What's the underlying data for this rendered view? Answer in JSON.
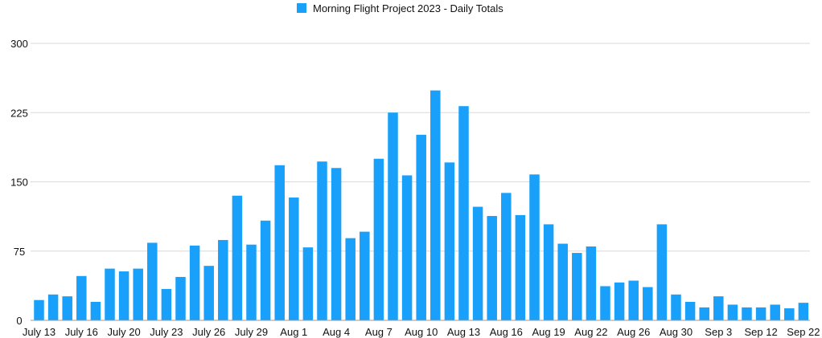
{
  "chart_data": {
    "type": "bar",
    "title": "",
    "xlabel": "",
    "ylabel": "",
    "ylim": [
      0,
      300
    ],
    "yticks": [
      0,
      75,
      150,
      225,
      300
    ],
    "grid": true,
    "legend_position": "top-center",
    "bar_color": "#18a0fb",
    "series": [
      {
        "name": "Morning Flight Project 2023 - Daily Totals",
        "values": [
          22,
          28,
          26,
          48,
          20,
          56,
          53,
          56,
          84,
          34,
          47,
          81,
          59,
          87,
          135,
          82,
          108,
          168,
          133,
          79,
          172,
          165,
          89,
          96,
          175,
          225,
          157,
          201,
          249,
          171,
          232,
          123,
          113,
          138,
          114,
          158,
          104,
          83,
          73,
          80,
          37,
          41,
          43,
          36,
          104,
          28,
          20,
          14,
          26,
          17,
          14,
          14,
          17,
          13,
          19
        ]
      }
    ],
    "x_tick_labels": [
      "July 13",
      "July 16",
      "July 20",
      "July 23",
      "July 26",
      "July 29",
      "Aug 1",
      "Aug 4",
      "Aug 7",
      "Aug 10",
      "Aug 13",
      "Aug 16",
      "Aug 19",
      "Aug 22",
      "Aug 26",
      "Aug 30",
      "Sep 3",
      "Sep 12",
      "Sep 22"
    ],
    "x_tick_bar_index": [
      0,
      3,
      6,
      9,
      12,
      15,
      18,
      21,
      24,
      27,
      30,
      33,
      36,
      39,
      42,
      45,
      48,
      51,
      54
    ]
  }
}
